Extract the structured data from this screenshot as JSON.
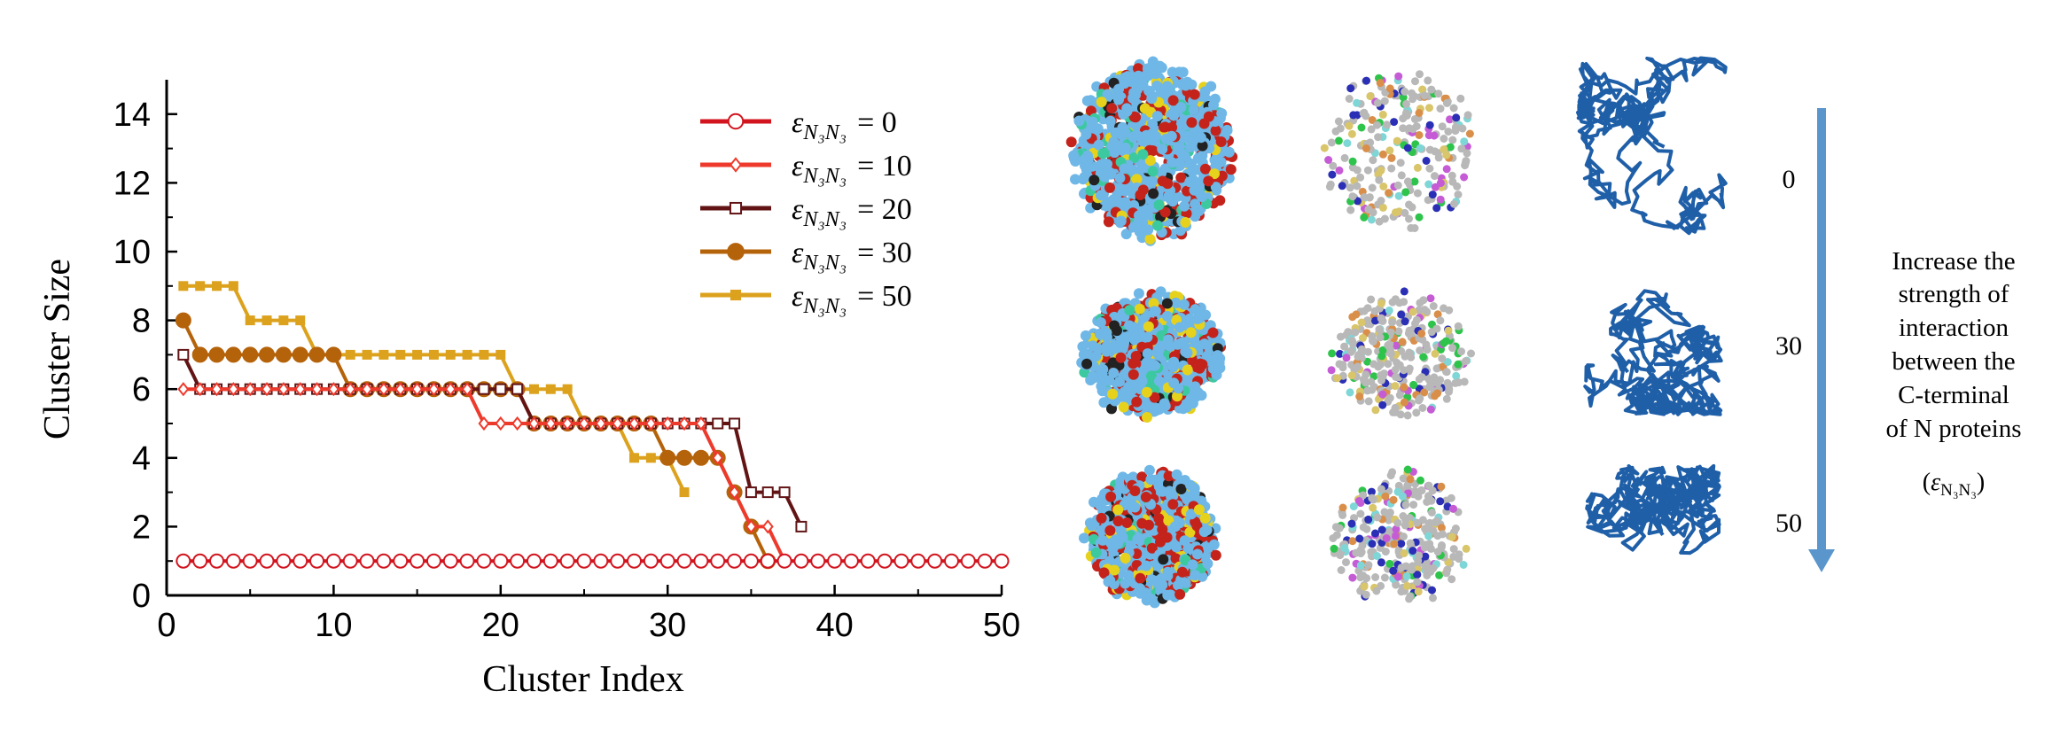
{
  "chart_data": {
    "type": "line",
    "xlabel": "Cluster Index",
    "ylabel": "Cluster Size",
    "xlim": [
      0,
      50
    ],
    "ylim": [
      0,
      15
    ],
    "xticks": [
      "0",
      "10",
      "20",
      "30",
      "40",
      "50"
    ],
    "yticks": [
      "0",
      "2",
      "4",
      "6",
      "8",
      "10",
      "12",
      "14"
    ],
    "legend_position": "top-right",
    "legend_symbol": "ε",
    "legend_subscript": "N₃N₃",
    "series": [
      {
        "name": "0",
        "label": "= 0",
        "color": "#d2141e",
        "marker": "open-circle",
        "x": [
          1,
          2,
          3,
          4,
          5,
          6,
          7,
          8,
          9,
          10,
          11,
          12,
          13,
          14,
          15,
          16,
          17,
          18,
          19,
          20,
          21,
          22,
          23,
          24,
          25,
          26,
          27,
          28,
          29,
          30,
          31,
          32,
          33,
          34,
          35,
          36,
          37,
          38,
          39,
          40,
          41,
          42,
          43,
          44,
          45,
          46,
          47,
          48,
          49,
          50
        ],
        "y": [
          1,
          1,
          1,
          1,
          1,
          1,
          1,
          1,
          1,
          1,
          1,
          1,
          1,
          1,
          1,
          1,
          1,
          1,
          1,
          1,
          1,
          1,
          1,
          1,
          1,
          1,
          1,
          1,
          1,
          1,
          1,
          1,
          1,
          1,
          1,
          1,
          1,
          1,
          1,
          1,
          1,
          1,
          1,
          1,
          1,
          1,
          1,
          1,
          1,
          1
        ]
      },
      {
        "name": "10",
        "label": "= 10",
        "color": "#ee3a2c",
        "marker": "open-diamond",
        "x": [
          1,
          2,
          3,
          4,
          5,
          6,
          7,
          8,
          9,
          10,
          11,
          12,
          13,
          14,
          15,
          16,
          17,
          18,
          19,
          20,
          21,
          22,
          23,
          24,
          25,
          26,
          27,
          28,
          29,
          30,
          31,
          32,
          33,
          34,
          35,
          36,
          37
        ],
        "y": [
          6,
          6,
          6,
          6,
          6,
          6,
          6,
          6,
          6,
          6,
          6,
          6,
          6,
          6,
          6,
          6,
          6,
          6,
          5,
          5,
          5,
          5,
          5,
          5,
          5,
          5,
          5,
          5,
          5,
          5,
          5,
          5,
          4,
          3,
          2,
          2,
          1
        ]
      },
      {
        "name": "20",
        "label": "= 20",
        "color": "#621415",
        "marker": "open-square",
        "x": [
          1,
          2,
          3,
          4,
          5,
          6,
          7,
          8,
          9,
          10,
          11,
          12,
          13,
          14,
          15,
          16,
          17,
          18,
          19,
          20,
          21,
          22,
          23,
          24,
          25,
          26,
          27,
          28,
          29,
          30,
          31,
          32,
          33,
          34,
          35,
          36,
          37,
          38
        ],
        "y": [
          7,
          6,
          6,
          6,
          6,
          6,
          6,
          6,
          6,
          6,
          6,
          6,
          6,
          6,
          6,
          6,
          6,
          6,
          6,
          6,
          6,
          5,
          5,
          5,
          5,
          5,
          5,
          5,
          5,
          5,
          5,
          5,
          5,
          5,
          3,
          3,
          3,
          2
        ]
      },
      {
        "name": "30",
        "label": "= 30",
        "color": "#b5630a",
        "marker": "filled-circle",
        "x": [
          1,
          2,
          3,
          4,
          5,
          6,
          7,
          8,
          9,
          10,
          11,
          12,
          13,
          14,
          15,
          16,
          17,
          18,
          19,
          20,
          21,
          22,
          23,
          24,
          25,
          26,
          27,
          28,
          29,
          30,
          31,
          32,
          33,
          34,
          35,
          36
        ],
        "y": [
          8,
          7,
          7,
          7,
          7,
          7,
          7,
          7,
          7,
          7,
          6,
          6,
          6,
          6,
          6,
          6,
          6,
          6,
          6,
          6,
          6,
          5,
          5,
          5,
          5,
          5,
          5,
          5,
          5,
          4,
          4,
          4,
          4,
          3,
          2,
          1
        ]
      },
      {
        "name": "50",
        "label": "= 50",
        "color": "#dca21d",
        "marker": "filled-square",
        "x": [
          1,
          2,
          3,
          4,
          5,
          6,
          7,
          8,
          9,
          10,
          11,
          12,
          13,
          14,
          15,
          16,
          17,
          18,
          19,
          20,
          21,
          22,
          23,
          24,
          25,
          26,
          27,
          28,
          29,
          30,
          31
        ],
        "y": [
          9,
          9,
          9,
          9,
          8,
          8,
          8,
          8,
          7,
          7,
          7,
          7,
          7,
          7,
          7,
          7,
          7,
          7,
          7,
          7,
          6,
          6,
          6,
          6,
          5,
          5,
          5,
          4,
          4,
          4,
          3
        ]
      }
    ]
  },
  "panel": {
    "row_labels": [
      "0",
      "30",
      "50"
    ],
    "arrow_caption": [
      "Increase the",
      "strength of",
      "interaction",
      "between the",
      "C-terminal",
      "of N proteins"
    ],
    "epsilon_symbol": "ε",
    "epsilon_subscript": "N₃N₃",
    "arrow_color": "#5a95cc"
  }
}
